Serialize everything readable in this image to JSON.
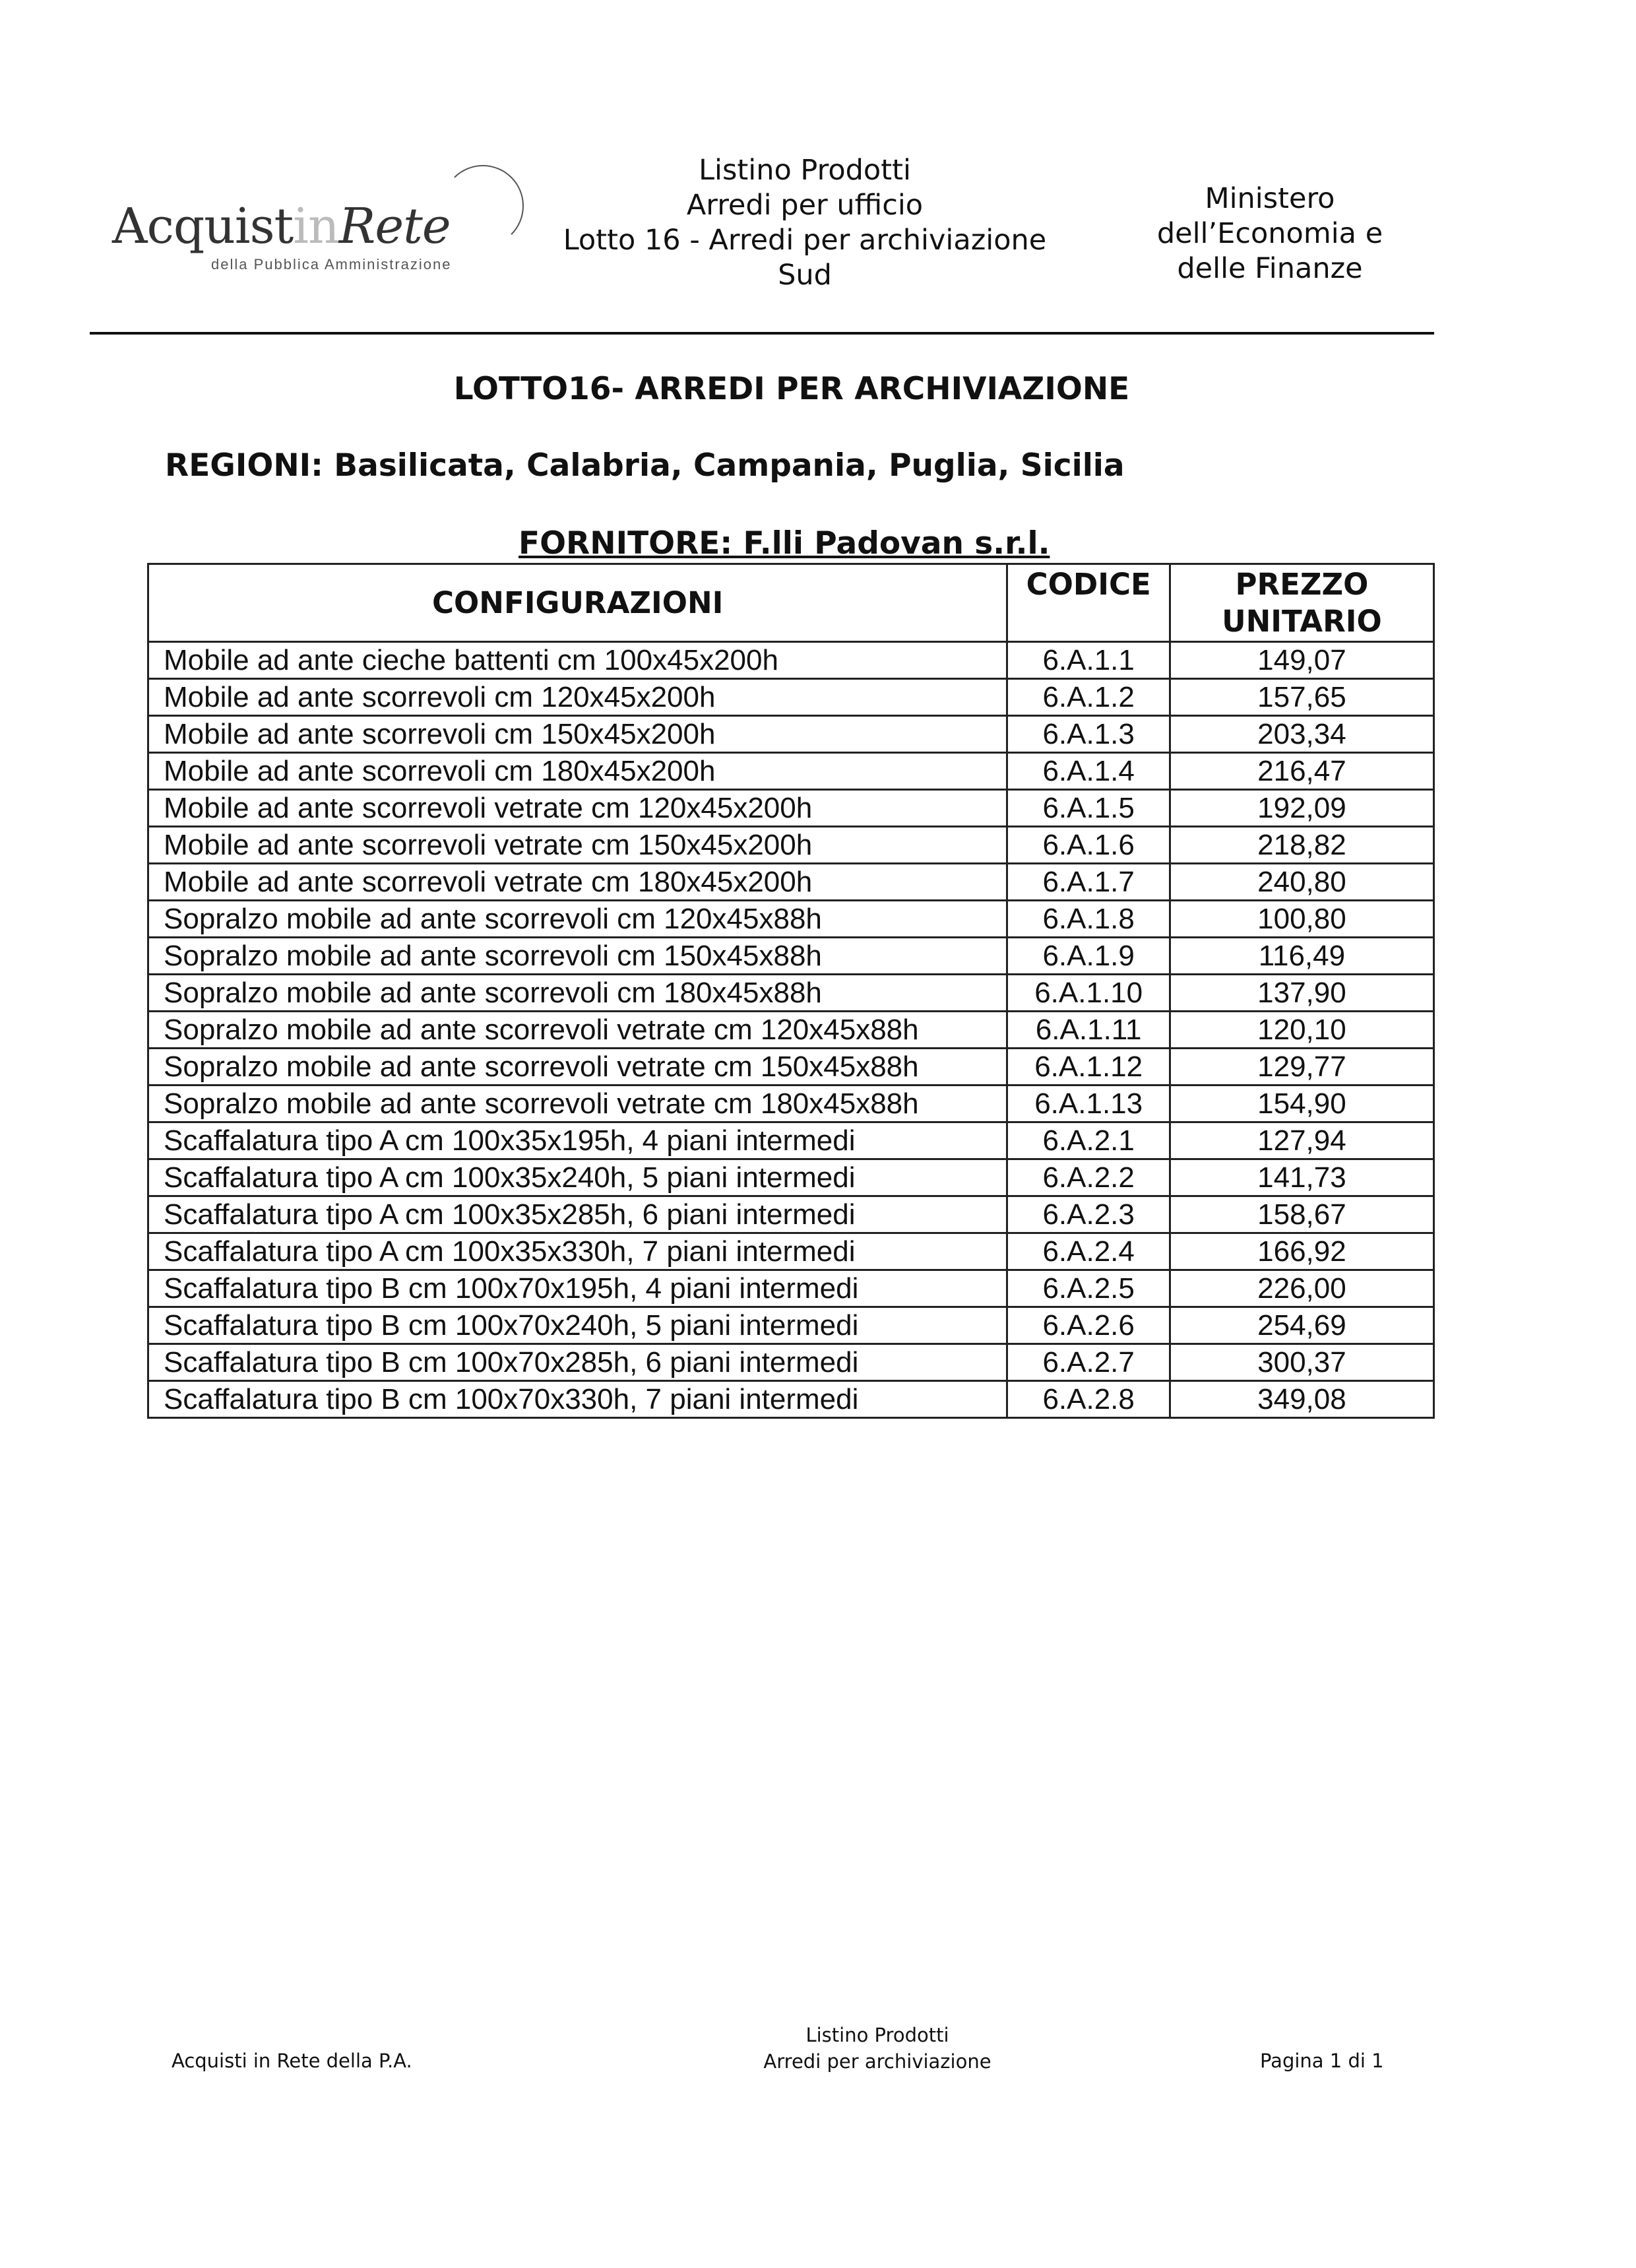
{
  "header": {
    "logo": {
      "main": "AcquistinRete",
      "sub": "della Pubblica Amministrazione"
    },
    "center_lines": [
      "Listino Prodotti",
      "Arredi per ufficio",
      "Lotto 16 - Arredi per archiviazione",
      "Sud"
    ],
    "right_lines": [
      "Ministero",
      "dell’Economia e",
      "delle Finanze"
    ]
  },
  "title": "LOTTO16- ARREDI PER ARCHIVIAZIONE",
  "regioni": "REGIONI: Basilicata, Calabria, Campania, Puglia, Sicilia",
  "fornitore": "FORNITORE: F.lli Padovan s.r.l.",
  "table": {
    "headers": [
      "CONFIGURAZIONI",
      "CODICE",
      "PREZZO UNITARIO"
    ],
    "rows": [
      [
        "Mobile ad ante cieche battenti cm 100x45x200h",
        "6.A.1.1",
        "149,07"
      ],
      [
        "Mobile ad ante scorrevoli cm 120x45x200h",
        "6.A.1.2",
        "157,65"
      ],
      [
        "Mobile ad ante scorrevoli cm 150x45x200h",
        "6.A.1.3",
        "203,34"
      ],
      [
        "Mobile ad ante scorrevoli cm 180x45x200h",
        "6.A.1.4",
        "216,47"
      ],
      [
        "Mobile ad ante scorrevoli vetrate cm 120x45x200h",
        "6.A.1.5",
        "192,09"
      ],
      [
        "Mobile ad ante scorrevoli vetrate cm 150x45x200h",
        "6.A.1.6",
        "218,82"
      ],
      [
        "Mobile ad ante scorrevoli vetrate cm 180x45x200h",
        "6.A.1.7",
        "240,80"
      ],
      [
        "Sopralzo mobile ad ante scorrevoli cm 120x45x88h",
        "6.A.1.8",
        "100,80"
      ],
      [
        "Sopralzo mobile ad ante scorrevoli cm 150x45x88h",
        "6.A.1.9",
        "116,49"
      ],
      [
        "Sopralzo mobile ad ante scorrevoli cm 180x45x88h",
        "6.A.1.10",
        "137,90"
      ],
      [
        "Sopralzo mobile ad ante scorrevoli vetrate cm 120x45x88h",
        "6.A.1.11",
        "120,10"
      ],
      [
        "Sopralzo mobile ad ante scorrevoli vetrate cm 150x45x88h",
        "6.A.1.12",
        "129,77"
      ],
      [
        "Sopralzo mobile ad ante scorrevoli vetrate cm 180x45x88h",
        "6.A.1.13",
        "154,90"
      ],
      [
        "Scaffalatura tipo A cm 100x35x195h, 4 piani intermedi",
        "6.A.2.1",
        "127,94"
      ],
      [
        "Scaffalatura tipo A cm 100x35x240h, 5 piani intermedi",
        "6.A.2.2",
        "141,73"
      ],
      [
        "Scaffalatura tipo A cm 100x35x285h, 6 piani intermedi",
        "6.A.2.3",
        "158,67"
      ],
      [
        "Scaffalatura tipo A cm 100x35x330h, 7 piani intermedi",
        "6.A.2.4",
        "166,92"
      ],
      [
        "Scaffalatura tipo B cm 100x70x195h, 4 piani intermedi",
        "6.A.2.5",
        "226,00"
      ],
      [
        "Scaffalatura tipo B cm 100x70x240h, 5 piani intermedi",
        "6.A.2.6",
        "254,69"
      ],
      [
        "Scaffalatura tipo B cm 100x70x285h, 6 piani intermedi",
        "6.A.2.7",
        "300,37"
      ],
      [
        "Scaffalatura tipo B cm 100x70x330h, 7 piani intermedi",
        "6.A.2.8",
        "349,08"
      ]
    ]
  },
  "footer": {
    "left": "Acquisti in Rete della P.A.",
    "center_lines": [
      "Listino Prodotti",
      "Arredi per archiviazione"
    ],
    "right": "Pagina 1 di 1"
  }
}
